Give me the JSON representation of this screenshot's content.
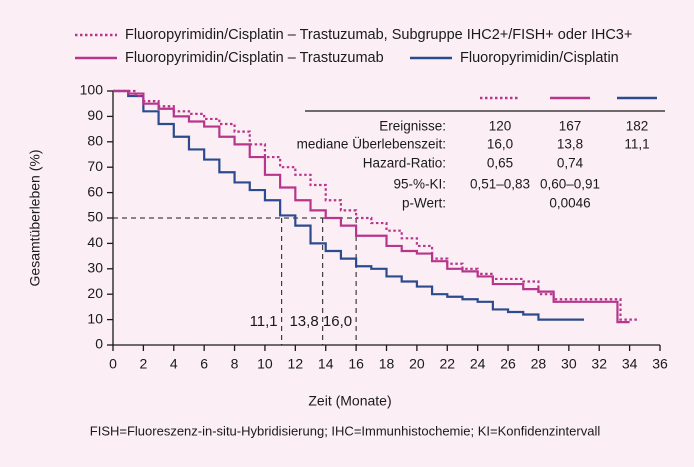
{
  "chart_data": {
    "type": "line",
    "step": true,
    "x_label": "Zeit (Monate)",
    "y_label": "Gesamtüberleben  (%)",
    "footnote": "FISH=Fluoreszenz-in-situ-Hybridisierung; IHC=Immunhistochemie; KI=Konfidenzintervall",
    "xlim": [
      0,
      36
    ],
    "xticks": [
      0,
      2,
      4,
      6,
      8,
      10,
      12,
      14,
      16,
      18,
      20,
      22,
      24,
      26,
      28,
      30,
      32,
      34,
      36
    ],
    "ylim": [
      0,
      100
    ],
    "yticks": [
      0,
      10,
      20,
      30,
      40,
      50,
      60,
      70,
      80,
      90,
      100
    ],
    "series": [
      {
        "name": "Fluoropyrimidin/Cisplatin – Trastuzumab, Subgruppe IHC2+/FISH+ oder IHC3+",
        "color": "#b8358c",
        "style": "dotted",
        "x": [
          0,
          1,
          1.5,
          2,
          3,
          4,
          5,
          6,
          7,
          8,
          9,
          10,
          11,
          12,
          13,
          14,
          15,
          16,
          17,
          18,
          19,
          20,
          21,
          22,
          23,
          24,
          25,
          26,
          27,
          28,
          29,
          33.4,
          34,
          34.6
        ],
        "values": [
          100,
          100,
          98,
          96,
          94,
          92,
          91,
          89,
          87,
          84,
          79,
          74,
          70,
          67,
          63,
          57,
          53,
          50,
          48,
          45,
          42,
          39,
          34,
          32,
          30,
          28,
          26,
          26,
          25,
          20,
          18,
          10,
          10,
          10
        ]
      },
      {
        "name": "Fluoropyrimidin/Cisplatin – Trastuzumab",
        "color": "#b8358c",
        "style": "solid",
        "x": [
          0,
          1,
          2,
          3,
          4,
          5,
          6,
          7,
          8,
          9,
          10,
          11,
          12,
          13,
          14,
          15,
          16,
          17,
          18,
          19,
          20,
          21,
          22,
          23,
          24,
          25,
          27,
          28,
          29,
          33.2,
          34
        ],
        "values": [
          100,
          99,
          95,
          93,
          90,
          88,
          86,
          82,
          79,
          74,
          67,
          62,
          57,
          53,
          50,
          47,
          43,
          43,
          39,
          37,
          36,
          33,
          30,
          29,
          27,
          24,
          22,
          21,
          17,
          9,
          9
        ]
      },
      {
        "name": "Fluoropyrimidin/Cisplatin",
        "color": "#2c4b8e",
        "style": "solid",
        "x": [
          0,
          1,
          2,
          3,
          4,
          5,
          6,
          7,
          8,
          9,
          10,
          11,
          12,
          13,
          14,
          15,
          16,
          17,
          18,
          19,
          20,
          21,
          22,
          23,
          24,
          25,
          26,
          27,
          28,
          31
        ],
        "values": [
          100,
          98,
          92,
          87,
          82,
          77,
          73,
          68,
          64,
          61,
          57,
          51,
          47,
          40,
          37,
          34,
          31,
          30,
          27,
          25,
          23,
          20,
          19,
          18,
          17,
          14,
          13,
          12,
          10,
          10
        ]
      }
    ],
    "median_level": 50,
    "medians": [
      {
        "value": 11.1,
        "label": "11,1"
      },
      {
        "value": 13.8,
        "label": "13,8"
      },
      {
        "value": 16.0,
        "label": "16,0"
      }
    ],
    "table": {
      "rows": [
        {
          "label": "Ereignisse:",
          "cells": [
            "120",
            "167",
            "182"
          ]
        },
        {
          "label": "mediane Überlebenszeit:",
          "cells": [
            "16,0",
            "13,8",
            "11,1"
          ]
        },
        {
          "label": "Hazard-Ratio:",
          "cells": [
            "0,65",
            "0,74",
            null
          ]
        },
        {
          "label": "95-%-KI:",
          "cells": [
            "0,51–0,83",
            "0,60–0,91",
            null
          ]
        },
        {
          "label": "p-Wert:",
          "cells": [
            null,
            "0,0046",
            null
          ]
        }
      ]
    }
  }
}
